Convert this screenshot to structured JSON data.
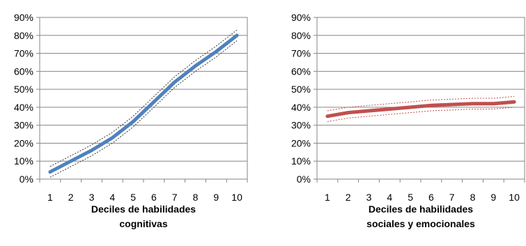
{
  "chart_data": [
    {
      "type": "line",
      "title": "",
      "xlabel": "Deciles de habilidades cognitivas",
      "xlabel_lines": [
        "Deciles de habilidades",
        "cognitivas"
      ],
      "ylabel": "",
      "categories": [
        "1",
        "2",
        "3",
        "4",
        "5",
        "6",
        "7",
        "8",
        "9",
        "10"
      ],
      "yticks": [
        "0%",
        "10%",
        "20%",
        "30%",
        "40%",
        "50%",
        "60%",
        "70%",
        "80%",
        "90%"
      ],
      "ylim": [
        0,
        0.9
      ],
      "grid": true,
      "legend": "none",
      "series": [
        {
          "values": [
            0.04,
            0.1,
            0.16,
            0.23,
            0.32,
            0.43,
            0.54,
            0.63,
            0.71,
            0.8
          ],
          "lower": [
            0.01,
            0.07,
            0.13,
            0.2,
            0.29,
            0.4,
            0.51,
            0.6,
            0.68,
            0.77
          ],
          "upper": [
            0.07,
            0.13,
            0.19,
            0.26,
            0.35,
            0.46,
            0.57,
            0.66,
            0.74,
            0.83
          ],
          "color": "#4f81bd"
        }
      ]
    },
    {
      "type": "line",
      "title": "",
      "xlabel": "Deciles de habilidades sociales y emocionales",
      "xlabel_lines": [
        "Deciles de habilidades",
        "sociales y emocionales"
      ],
      "ylabel": "",
      "categories": [
        "1",
        "2",
        "3",
        "4",
        "5",
        "6",
        "7",
        "8",
        "9",
        "10"
      ],
      "yticks": [
        "0%",
        "10%",
        "20%",
        "30%",
        "40%",
        "50%",
        "60%",
        "70%",
        "80%",
        "90%"
      ],
      "ylim": [
        0,
        0.9
      ],
      "grid": true,
      "legend": "none",
      "series": [
        {
          "values": [
            0.35,
            0.37,
            0.38,
            0.39,
            0.4,
            0.41,
            0.415,
            0.42,
            0.42,
            0.43
          ],
          "lower": [
            0.32,
            0.34,
            0.35,
            0.36,
            0.37,
            0.38,
            0.385,
            0.39,
            0.39,
            0.4
          ],
          "upper": [
            0.38,
            0.4,
            0.41,
            0.42,
            0.43,
            0.44,
            0.445,
            0.45,
            0.45,
            0.46
          ],
          "color": "#c0504d"
        }
      ]
    }
  ]
}
